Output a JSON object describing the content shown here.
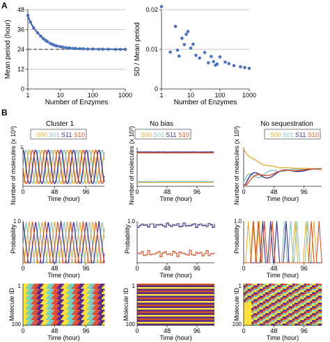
{
  "panel_labels": {
    "a": "A",
    "b": "B"
  },
  "colors": {
    "blue": "#3d5fa8",
    "point": "#4a73b9",
    "grid": "#b5b5b5",
    "s00": "#e0b030",
    "s01": "#88c2c0",
    "s11": "#3c2e88",
    "s10": "#d2542a",
    "raster": [
      "#ffe23a",
      "#7bd0c2",
      "#e2503a",
      "#552a88"
    ]
  },
  "chart_data": [
    {
      "type": "scatter",
      "id": "A-left",
      "ylabel": "Mean period (hour)",
      "xlabel": "Number of Enzymes",
      "x_scale": "log",
      "xlim": [
        1,
        1000
      ],
      "ylim": [
        0,
        48
      ],
      "xticks": [
        "1",
        "10",
        "100",
        "1000"
      ],
      "yticks": [
        "0",
        "12",
        "24",
        "36",
        "48"
      ],
      "grid_y": [
        12,
        24,
        36,
        48
      ],
      "dashed_reference_y": 24,
      "x": [
        1,
        1.2,
        1.5,
        2,
        2.5,
        3,
        3.5,
        4,
        5,
        6,
        7,
        8,
        10,
        12,
        15,
        18,
        20,
        25,
        30,
        40,
        50,
        70,
        100,
        150,
        200,
        300,
        500,
        700,
        1000
      ],
      "y": [
        44.5,
        40.5,
        37,
        34,
        32,
        30.5,
        29.5,
        28.7,
        27.5,
        26.8,
        26.3,
        26,
        25.6,
        25.3,
        25,
        24.8,
        24.7,
        24.6,
        24.5,
        24.4,
        24.3,
        24.2,
        24.2,
        24.1,
        24.1,
        24.1,
        24,
        24,
        24
      ]
    },
    {
      "type": "scatter",
      "id": "A-right",
      "ylabel": "SD / Mean period",
      "xlabel": "Number of Enzymes",
      "x_scale": "log",
      "xlim": [
        1,
        1000
      ],
      "ylim": [
        0,
        0.02
      ],
      "xticks": [
        "1",
        "10",
        "100",
        "1000"
      ],
      "yticks": [
        "0",
        "0.01",
        "0.02"
      ],
      "grid_y": [
        0.01,
        0.02
      ],
      "x": [
        1,
        2,
        3,
        3.5,
        4,
        5,
        6,
        7,
        8,
        10,
        12,
        15,
        20,
        30,
        40,
        50,
        60,
        70,
        80,
        100,
        150,
        200,
        300,
        500,
        700,
        1000
      ],
      "y": [
        0.0208,
        0.0093,
        0.0158,
        0.0098,
        0.0083,
        0.0128,
        0.0112,
        0.0138,
        0.0145,
        0.0103,
        0.0113,
        0.0085,
        0.0078,
        0.0092,
        0.0066,
        0.0082,
        0.0069,
        0.006,
        0.0063,
        0.0081,
        0.0068,
        0.0064,
        0.0059,
        0.0056,
        0.0054,
        0.0052
      ]
    }
  ],
  "panelB": {
    "columns": [
      "Cluster 1",
      "No bias",
      "No sequestration"
    ],
    "legend": [
      "S00",
      "S01",
      "S11",
      "S10"
    ],
    "ylabel_molecules": "Number of molecules (x 10³)",
    "ylabel_probability": "Probability",
    "ylabel_molecule_id": "Molecule ID",
    "xlabel": "Time (hour)",
    "xticks": [
      "0",
      "48",
      "96"
    ],
    "prob_ytick": "1.0",
    "raster_yticks": [
      "1",
      "100"
    ],
    "mol_ytick": "1"
  }
}
